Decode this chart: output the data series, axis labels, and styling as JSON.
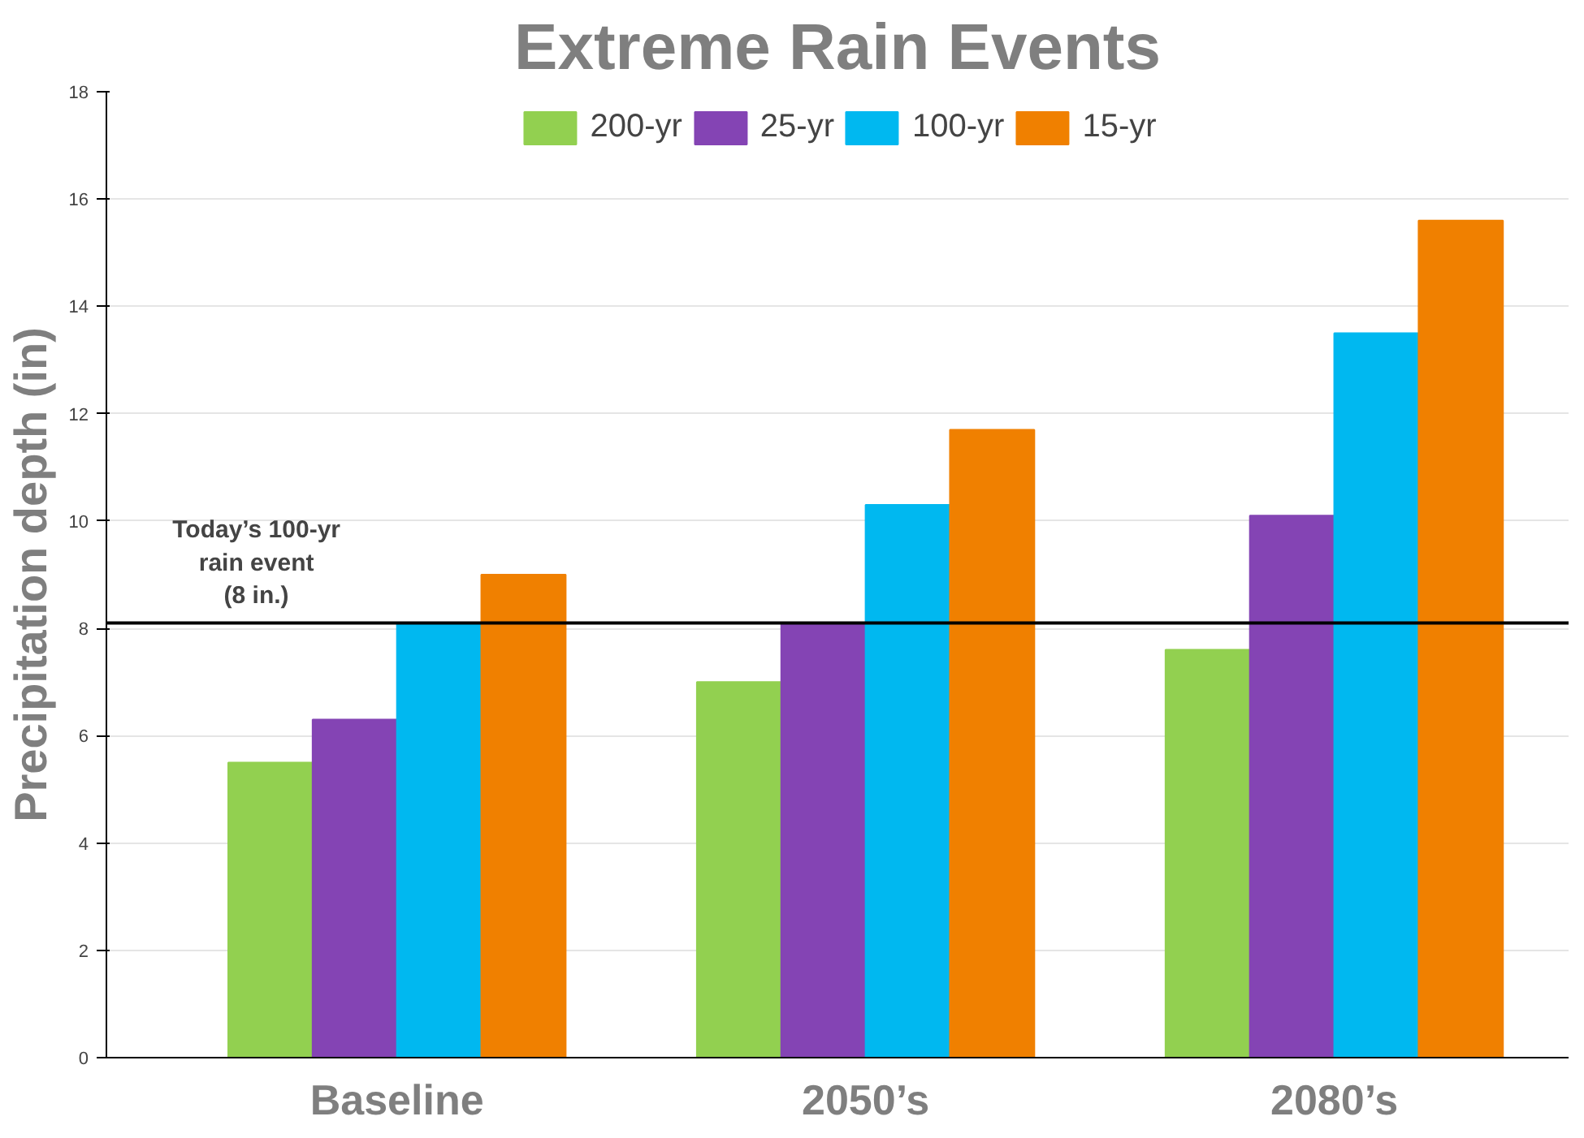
{
  "chart_data": {
    "type": "bar",
    "title": "Extreme Rain Events",
    "ylabel": "Precipitation depth (in)",
    "categories": [
      "Baseline",
      "2050’s",
      "2080’s"
    ],
    "series": [
      {
        "name": "200-yr",
        "color": "#92d050",
        "values": [
          5.5,
          7.0,
          7.6
        ]
      },
      {
        "name": "25-yr",
        "color": "#8444b4",
        "values": [
          6.3,
          8.1,
          10.1
        ]
      },
      {
        "name": "100-yr",
        "color": "#00b8f0",
        "values": [
          8.1,
          10.3,
          13.5
        ]
      },
      {
        "name": "15-yr",
        "color": "#f08000",
        "values": [
          9.0,
          11.7,
          15.6
        ]
      }
    ],
    "ylim": [
      0,
      18
    ],
    "yticks": [
      0,
      2,
      4,
      6,
      8,
      10,
      12,
      14,
      16,
      18
    ],
    "grid": "y",
    "legend": "top",
    "ref_lines": [
      {
        "axis": "y",
        "value": 8.1,
        "label": "Today’s 100-yr\nrain event\n(8 in.)",
        "color": "#000000"
      }
    ]
  }
}
